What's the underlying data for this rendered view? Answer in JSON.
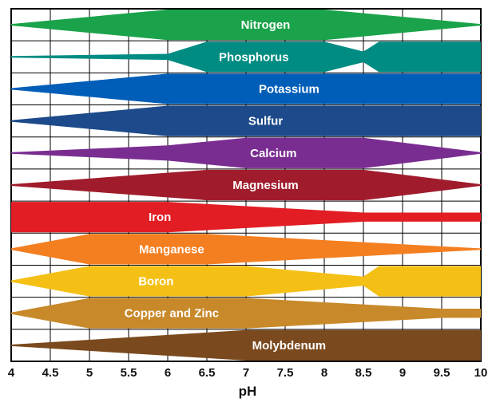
{
  "chart_data": {
    "type": "area",
    "xlabel": "pH",
    "xlim": [
      4,
      10
    ],
    "xticks": [
      "4",
      "4.5",
      "5",
      "5.5",
      "6",
      "6.5",
      "7",
      "7.5",
      "8",
      "8.5",
      "9",
      "9.5",
      "10"
    ],
    "grid": true,
    "legend": "none",
    "series": [
      {
        "name": "Nitrogen",
        "color": "#1aa34a",
        "label_x": 7.25,
        "profile": [
          [
            4,
            0.05
          ],
          [
            6,
            1
          ],
          [
            8,
            1
          ],
          [
            10,
            0.05
          ]
        ]
      },
      {
        "name": "Phosphorus",
        "color": "#008c82",
        "label_x": 7.1,
        "profile": [
          [
            4,
            0.05
          ],
          [
            6,
            0.2
          ],
          [
            6.5,
            1
          ],
          [
            8,
            1
          ],
          [
            8.5,
            0.35
          ],
          [
            8.7,
            1
          ],
          [
            10,
            1
          ]
        ]
      },
      {
        "name": "Potassium",
        "color": "#005eb8",
        "label_x": 7.55,
        "profile": [
          [
            4,
            0.05
          ],
          [
            6,
            1
          ],
          [
            10,
            1
          ]
        ]
      },
      {
        "name": "Sulfur",
        "color": "#1d4a8a",
        "label_x": 7.25,
        "profile": [
          [
            4,
            0.05
          ],
          [
            6,
            1
          ],
          [
            10,
            1
          ]
        ]
      },
      {
        "name": "Calcium",
        "color": "#7a2d91",
        "label_x": 7.35,
        "profile": [
          [
            4,
            0.05
          ],
          [
            6,
            0.5
          ],
          [
            7,
            1
          ],
          [
            8.5,
            1
          ],
          [
            10,
            0.05
          ]
        ]
      },
      {
        "name": "Magnesium",
        "color": "#a01c2c",
        "label_x": 7.25,
        "profile": [
          [
            4,
            0.05
          ],
          [
            6.5,
            1
          ],
          [
            8.5,
            1
          ],
          [
            10,
            0.05
          ]
        ]
      },
      {
        "name": "Iron",
        "color": "#e21d24",
        "label_x": 5.9,
        "profile": [
          [
            4,
            1
          ],
          [
            6,
            1
          ],
          [
            8.5,
            0.3
          ],
          [
            10,
            0.3
          ]
        ]
      },
      {
        "name": "Manganese",
        "color": "#f47f20",
        "label_x": 6.05,
        "profile": [
          [
            4,
            0.05
          ],
          [
            5,
            1
          ],
          [
            6.5,
            1
          ],
          [
            10,
            0.05
          ]
        ]
      },
      {
        "name": "Boron",
        "color": "#f5c016",
        "label_x": 5.85,
        "profile": [
          [
            4,
            0.05
          ],
          [
            5,
            1
          ],
          [
            7,
            1
          ],
          [
            8.5,
            0.3
          ],
          [
            8.7,
            1
          ],
          [
            10,
            1
          ]
        ]
      },
      {
        "name": "Copper and Zinc",
        "color": "#c8892a",
        "label_x": 6.05,
        "profile": [
          [
            4,
            0.05
          ],
          [
            5,
            1
          ],
          [
            7,
            1
          ],
          [
            9.5,
            0.3
          ],
          [
            10,
            0.3
          ]
        ]
      },
      {
        "name": "Molybdenum",
        "color": "#7a4a1e",
        "label_x": 7.55,
        "profile": [
          [
            4,
            0.05
          ],
          [
            7,
            1
          ],
          [
            10,
            1
          ]
        ]
      }
    ]
  }
}
